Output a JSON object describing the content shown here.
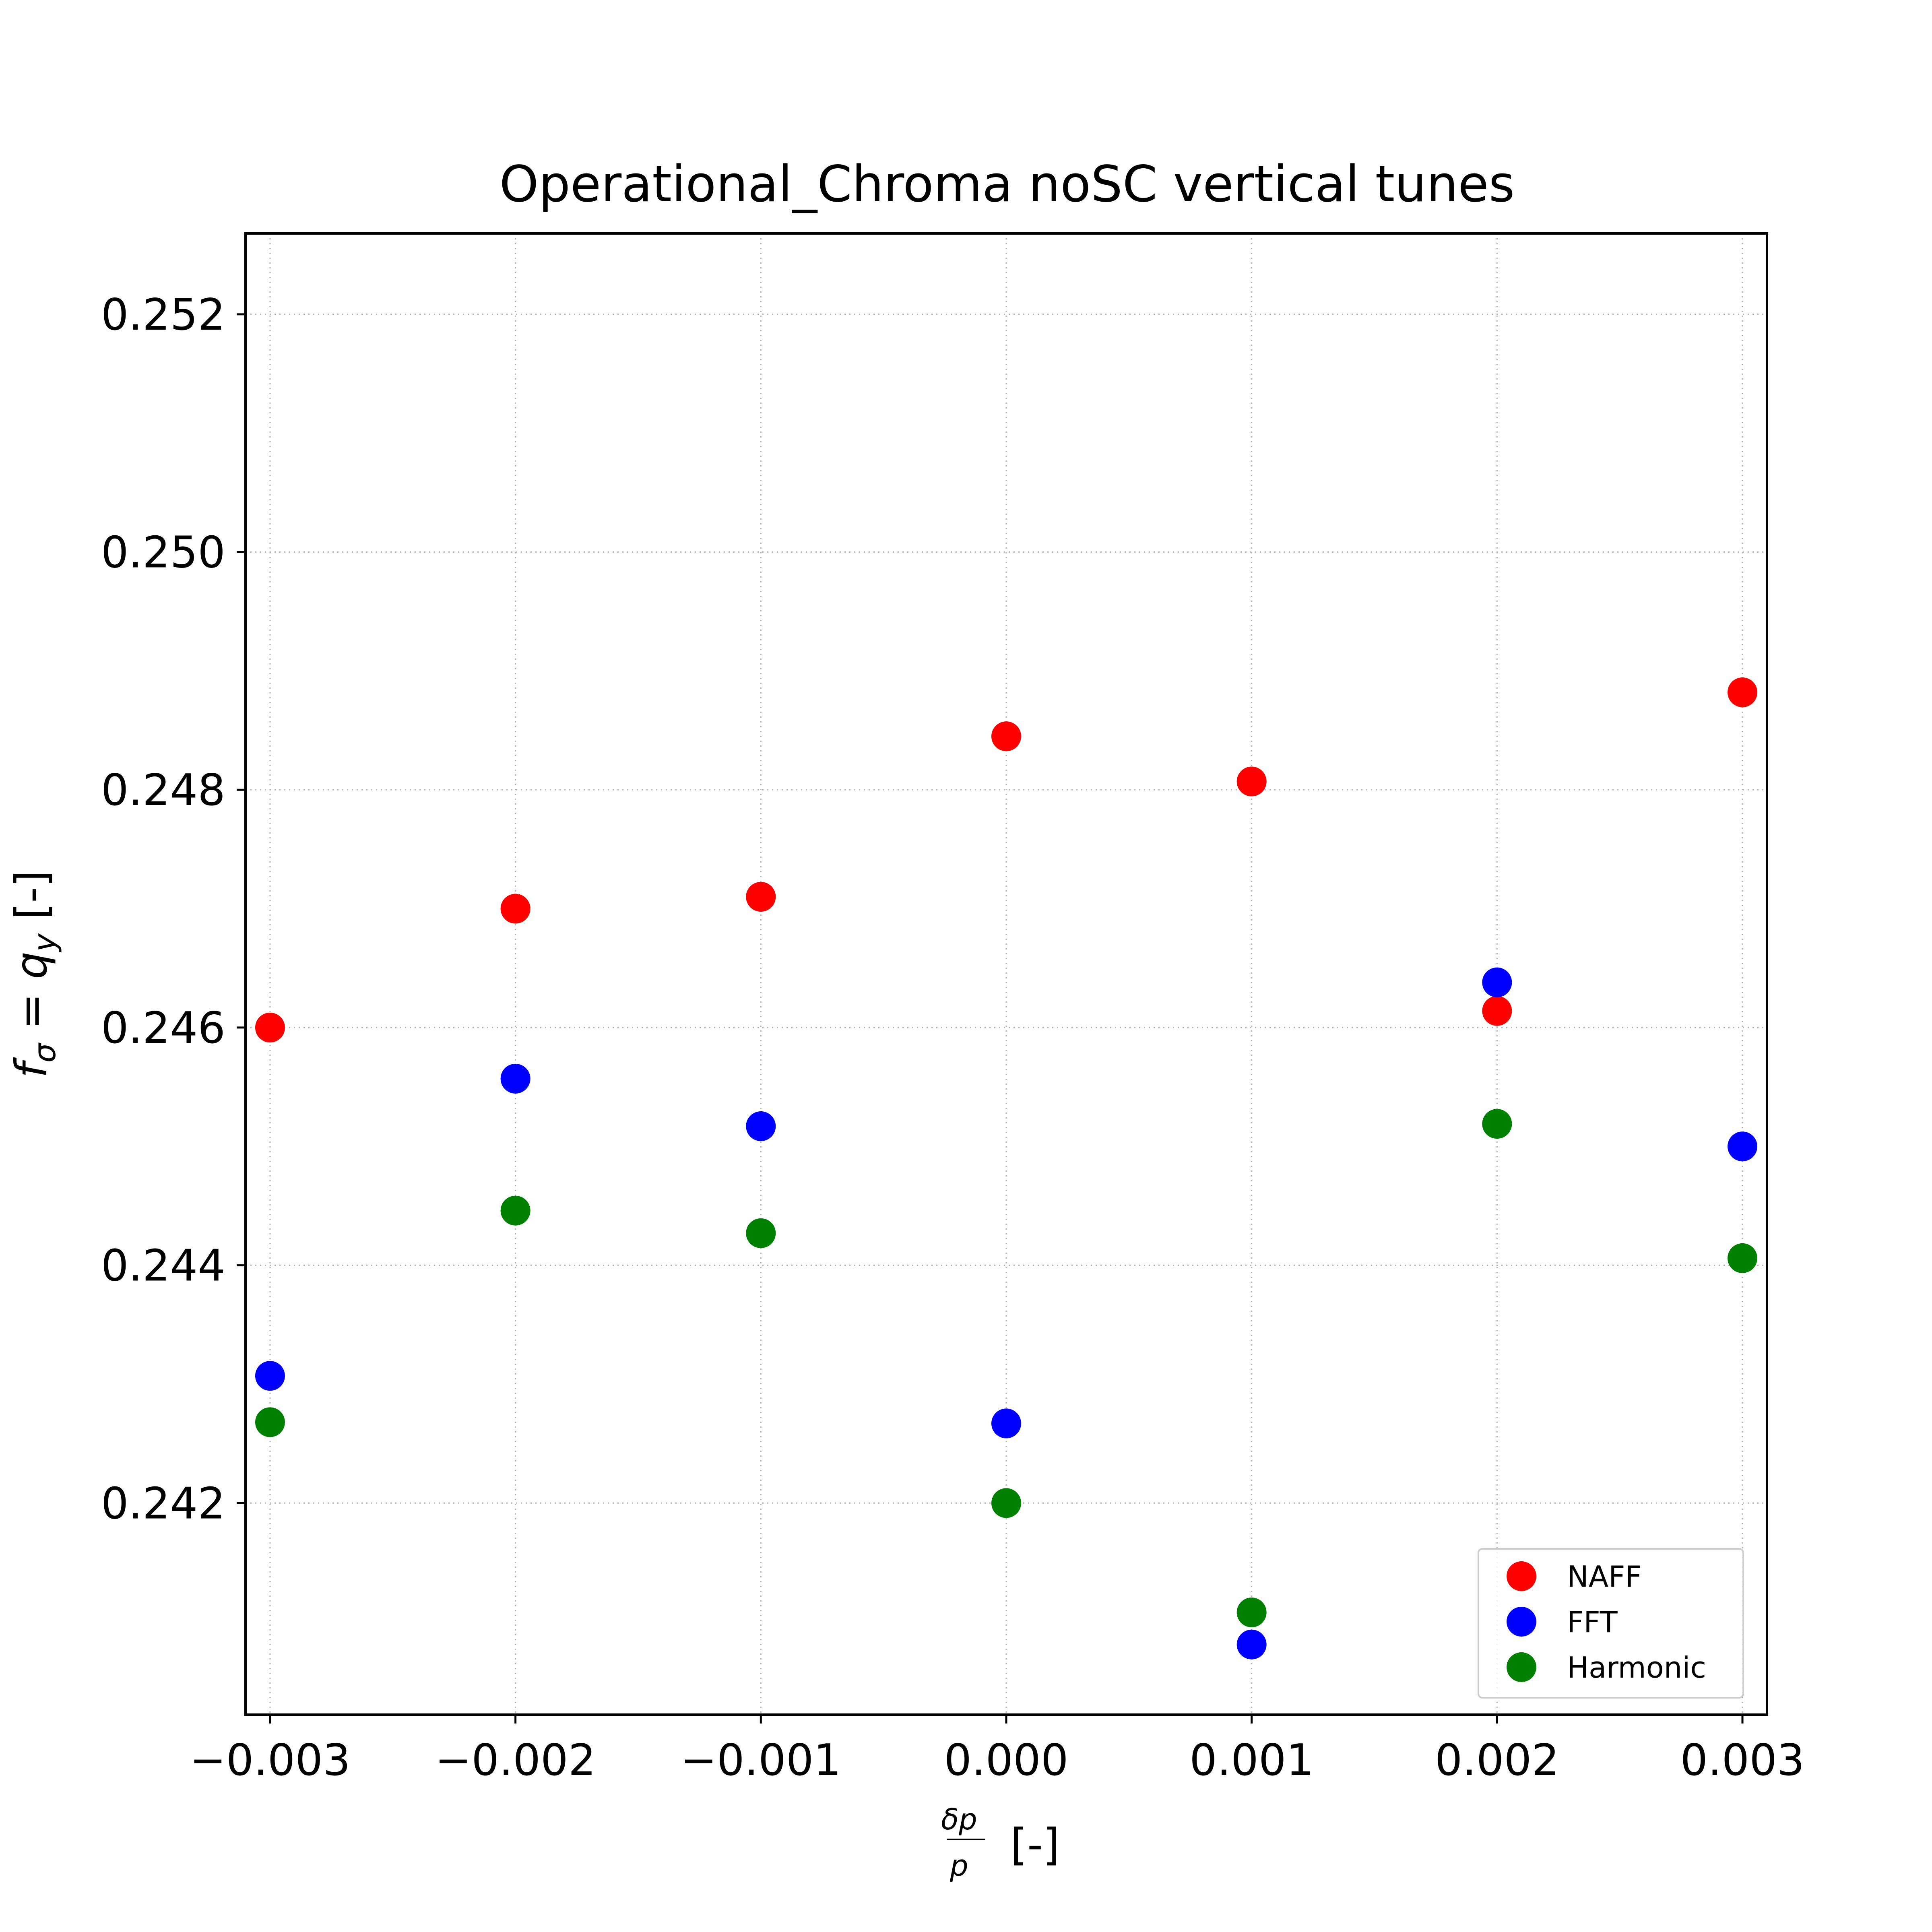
{
  "chart_data": {
    "type": "scatter",
    "title": "Operational_Chroma noSC vertical tunes",
    "xlabel": {
      "numerator": "δp",
      "denominator": "p",
      "unit": "[-]"
    },
    "ylabel": {
      "lhs": "f",
      "lhs_sub": "σ",
      "eq": " = ",
      "rhs": "q",
      "rhs_sub": "y",
      "unit": " [-]"
    },
    "xlim": [
      -0.0031,
      0.0031
    ],
    "ylim": [
      0.24022,
      0.25268
    ],
    "xticks": [
      -0.003,
      -0.002,
      -0.001,
      0.0,
      0.001,
      0.002,
      0.003
    ],
    "xtick_labels": [
      "−0.003",
      "−0.002",
      "−0.001",
      "0.000",
      "0.001",
      "0.002",
      "0.003"
    ],
    "yticks": [
      0.242,
      0.244,
      0.246,
      0.248,
      0.25,
      0.252
    ],
    "ytick_labels": [
      "0.242",
      "0.244",
      "0.246",
      "0.248",
      "0.250",
      "0.252"
    ],
    "grid": true,
    "legend_position": "lower right",
    "series": [
      {
        "name": "NAFF",
        "color": "#ff0000",
        "x": [
          -0.003,
          -0.002,
          -0.001,
          0.0,
          0.001,
          0.002,
          0.003
        ],
        "y": [
          0.246,
          0.247,
          0.2471,
          0.24845,
          0.24807,
          0.24614,
          0.24882
        ]
      },
      {
        "name": "FFT",
        "color": "#0000ff",
        "x": [
          -0.003,
          -0.002,
          -0.001,
          0.0,
          0.001,
          0.002,
          0.003
        ],
        "y": [
          0.24307,
          0.24557,
          0.24517,
          0.24267,
          0.24081,
          0.24638,
          0.245
        ]
      },
      {
        "name": "Harmonic",
        "color": "#008000",
        "x": [
          -0.003,
          -0.002,
          -0.001,
          0.0,
          0.001,
          0.002,
          0.003
        ],
        "y": [
          0.24268,
          0.24446,
          0.24427,
          0.242,
          0.24108,
          0.24519,
          0.24406
        ]
      }
    ]
  }
}
